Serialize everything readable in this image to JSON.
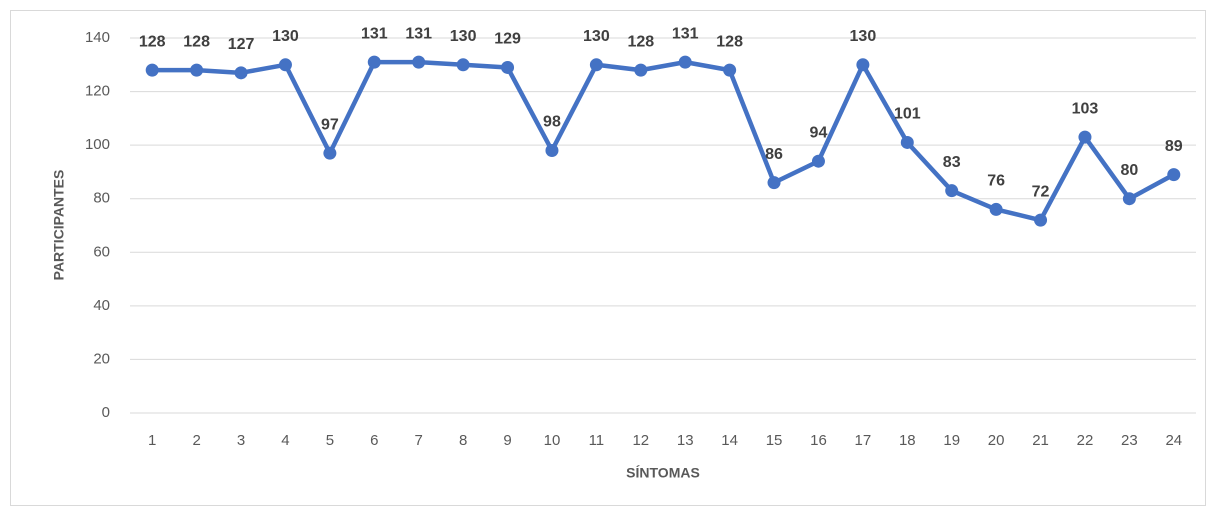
{
  "chart_data": {
    "type": "line",
    "x_label": "SÍNTOMAS",
    "y_label": "PARTICIPANTES",
    "categories": [
      "1",
      "2",
      "3",
      "4",
      "5",
      "6",
      "7",
      "8",
      "9",
      "10",
      "11",
      "12",
      "13",
      "14",
      "15",
      "16",
      "17",
      "18",
      "19",
      "20",
      "21",
      "22",
      "23",
      "24"
    ],
    "series": [
      {
        "name": "Participantes",
        "color": "#4472c4",
        "values": [
          128,
          128,
          127,
          130,
          97,
          131,
          131,
          130,
          129,
          98,
          130,
          128,
          131,
          128,
          86,
          94,
          130,
          101,
          83,
          76,
          72,
          103,
          80,
          89
        ]
      }
    ],
    "ylim": [
      0,
      140
    ],
    "yticks": [
      0,
      20,
      40,
      60,
      80,
      100,
      120,
      140
    ],
    "grid": true
  }
}
